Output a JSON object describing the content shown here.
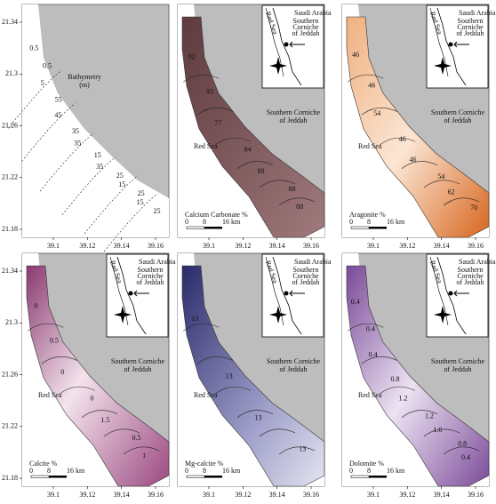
{
  "axes": {
    "yticks": [
      21.34,
      21.3,
      21.26,
      21.22,
      21.18
    ],
    "xticks": [
      39.1,
      39.12,
      39.14,
      39.16
    ]
  },
  "labels": {
    "sea": "Red Sea",
    "area": [
      "Southern Corniche",
      "of Jeddah"
    ],
    "scale_bar": [
      "0",
      "8",
      "16 km"
    ]
  },
  "inset": {
    "country": "Saudi Arabia",
    "area_lines": [
      "Southern",
      "Corniche",
      "of Jeddah"
    ],
    "sea": "Red Sea"
  },
  "panels": [
    {
      "title": [
        "Bathymetry",
        "(m)"
      ],
      "contour_labels": [
        "0.5",
        "0.5",
        "5",
        "55",
        "45",
        "35",
        "35",
        "15",
        "35",
        "25",
        "15",
        "25",
        "15",
        "25"
      ]
    },
    {
      "title": [
        "Calcium Carbonate %"
      ],
      "contour_labels": [
        "92",
        "93",
        "77",
        "84",
        "88",
        "88",
        "88"
      ]
    },
    {
      "title": [
        "Aragonite %"
      ],
      "contour_labels": [
        "46",
        "46",
        "54",
        "46",
        "46",
        "54",
        "62",
        "70"
      ]
    },
    {
      "title": [
        "Calcite %"
      ],
      "contour_labels": [
        "0",
        "0.5",
        "0",
        "0",
        "1.5",
        "0.5",
        "1"
      ]
    },
    {
      "title": [
        "Mg-calcite %"
      ],
      "contour_labels": [
        "13",
        "13",
        "13",
        "13"
      ]
    },
    {
      "title": [
        "Dolomite %"
      ],
      "contour_labels": [
        "0.4",
        "0.4",
        "0.4",
        "0.8",
        "1.2",
        "1.2",
        "1.6",
        "0.8",
        "0.4"
      ]
    }
  ]
}
